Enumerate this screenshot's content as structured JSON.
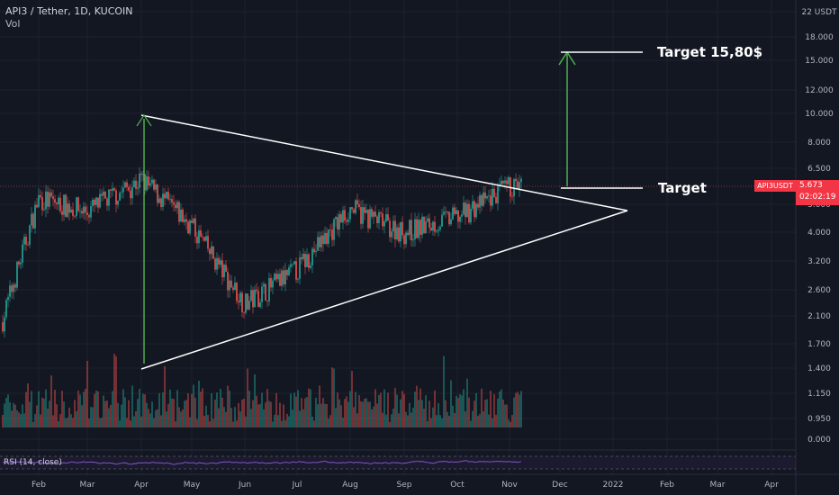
{
  "header": {
    "title": "API3 / Tether, 1D, KUCOIN",
    "volume_label": "Vol",
    "rsi_label": "RSI (14, close)"
  },
  "price_axis": {
    "currency_label": "22 USDT",
    "ticks": [
      "18.000",
      "15.000",
      "12.000",
      "10.000",
      "8.000",
      "6.500",
      "5.000",
      "4.000",
      "3.200",
      "2.600",
      "2.100",
      "1.700",
      "1.400",
      "1.150",
      "0.950",
      "0.000"
    ]
  },
  "time_axis": {
    "labels": [
      "Feb",
      "Mar",
      "Apr",
      "May",
      "Jun",
      "Jul",
      "Aug",
      "Sep",
      "Oct",
      "Nov",
      "Dec",
      "2022",
      "Feb",
      "Mar",
      "Apr"
    ]
  },
  "price_tag": {
    "symbol": "API3USDT",
    "last_price": "5.673",
    "countdown": "02:02:19"
  },
  "annotations": {
    "target_label": "Target",
    "target2_label": "Target 15,80$"
  },
  "colors": {
    "background": "#131722",
    "up": "#26a69a",
    "down": "#ef5350",
    "lines": "#ffffff",
    "arrow": "#4caf50",
    "rsi": "#7e57c2",
    "tag": "#f23645"
  },
  "chart_data": {
    "type": "candlestick",
    "symbol": "API3 / Tether",
    "interval": "1D",
    "exchange": "KUCOIN",
    "scale": "log",
    "y_unit": "USDT",
    "last_price": 5.673,
    "approx_monthly_closes": [
      {
        "month": "Feb",
        "close": 5.2
      },
      {
        "month": "Mar",
        "close": 4.7
      },
      {
        "month": "Apr",
        "close": 6.0
      },
      {
        "month": "May",
        "close": 4.2
      },
      {
        "month": "Jun",
        "close": 2.3
      },
      {
        "month": "Jul",
        "close": 3.0
      },
      {
        "month": "Aug",
        "close": 4.8
      },
      {
        "month": "Sep",
        "close": 4.0
      },
      {
        "month": "Oct",
        "close": 4.5
      },
      {
        "month": "Nov",
        "close": 5.673
      }
    ],
    "pattern": "symmetrical triangle",
    "triangle_upper_line": [
      {
        "date": "Apr",
        "price": 9.9
      },
      {
        "date": "Dec",
        "price": 4.6
      }
    ],
    "triangle_lower_line": [
      {
        "date": "Apr",
        "price": 1.4
      },
      {
        "date": "Dec",
        "price": 4.6
      }
    ],
    "pole_height": {
      "from": 1.4,
      "to": 9.9
    },
    "target_levels": [
      5.4,
      15.8
    ]
  }
}
